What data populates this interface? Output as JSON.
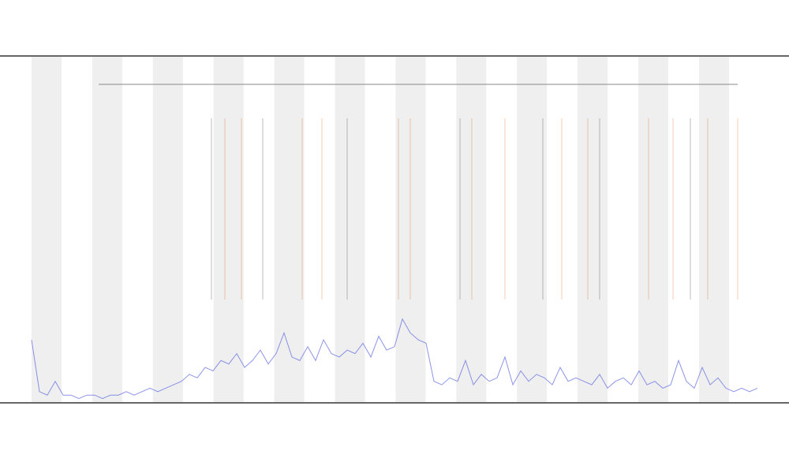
{
  "chart_data": {
    "type": "line",
    "x": [
      0,
      1,
      2,
      3,
      4,
      5,
      6,
      7,
      8,
      9,
      10,
      11,
      12,
      13,
      14,
      15,
      16,
      17,
      18,
      19,
      20,
      21,
      22,
      23,
      24,
      25,
      26,
      27,
      28,
      29,
      30,
      31,
      32,
      33,
      34,
      35,
      36,
      37,
      38,
      39,
      40,
      41,
      42,
      43,
      44,
      45,
      46,
      47,
      48,
      49,
      50,
      51,
      52,
      53,
      54,
      55,
      56,
      57,
      58,
      59,
      60,
      61,
      62,
      63,
      64,
      65,
      66,
      67,
      68,
      69,
      70,
      71,
      72,
      73,
      74,
      75,
      76,
      77,
      78,
      79,
      80,
      81,
      82,
      83,
      84,
      85,
      86,
      87,
      88,
      89,
      90,
      91,
      92
    ],
    "series": [
      {
        "color": "#5b66e0",
        "values": [
          18,
          3,
          2,
          6,
          2,
          2,
          1,
          2,
          2,
          1,
          2,
          2,
          3,
          2,
          3,
          4,
          3,
          4,
          5,
          6,
          8,
          7,
          10,
          9,
          12,
          11,
          14,
          10,
          12,
          15,
          11,
          14,
          20,
          13,
          12,
          16,
          12,
          18,
          14,
          13,
          15,
          14,
          17,
          13,
          19,
          15,
          16,
          24,
          20,
          18,
          17,
          6,
          5,
          7,
          6,
          12,
          5,
          8,
          6,
          7,
          13,
          5,
          9,
          6,
          8,
          7,
          5,
          10,
          6,
          7,
          6,
          5,
          8,
          4,
          6,
          7,
          5,
          9,
          5,
          6,
          4,
          5,
          12,
          6,
          4,
          10,
          5,
          7,
          4,
          3,
          4,
          3,
          4
        ]
      }
    ],
    "xlim": [
      0,
      92
    ],
    "ylim": [
      0,
      100
    ]
  }
}
